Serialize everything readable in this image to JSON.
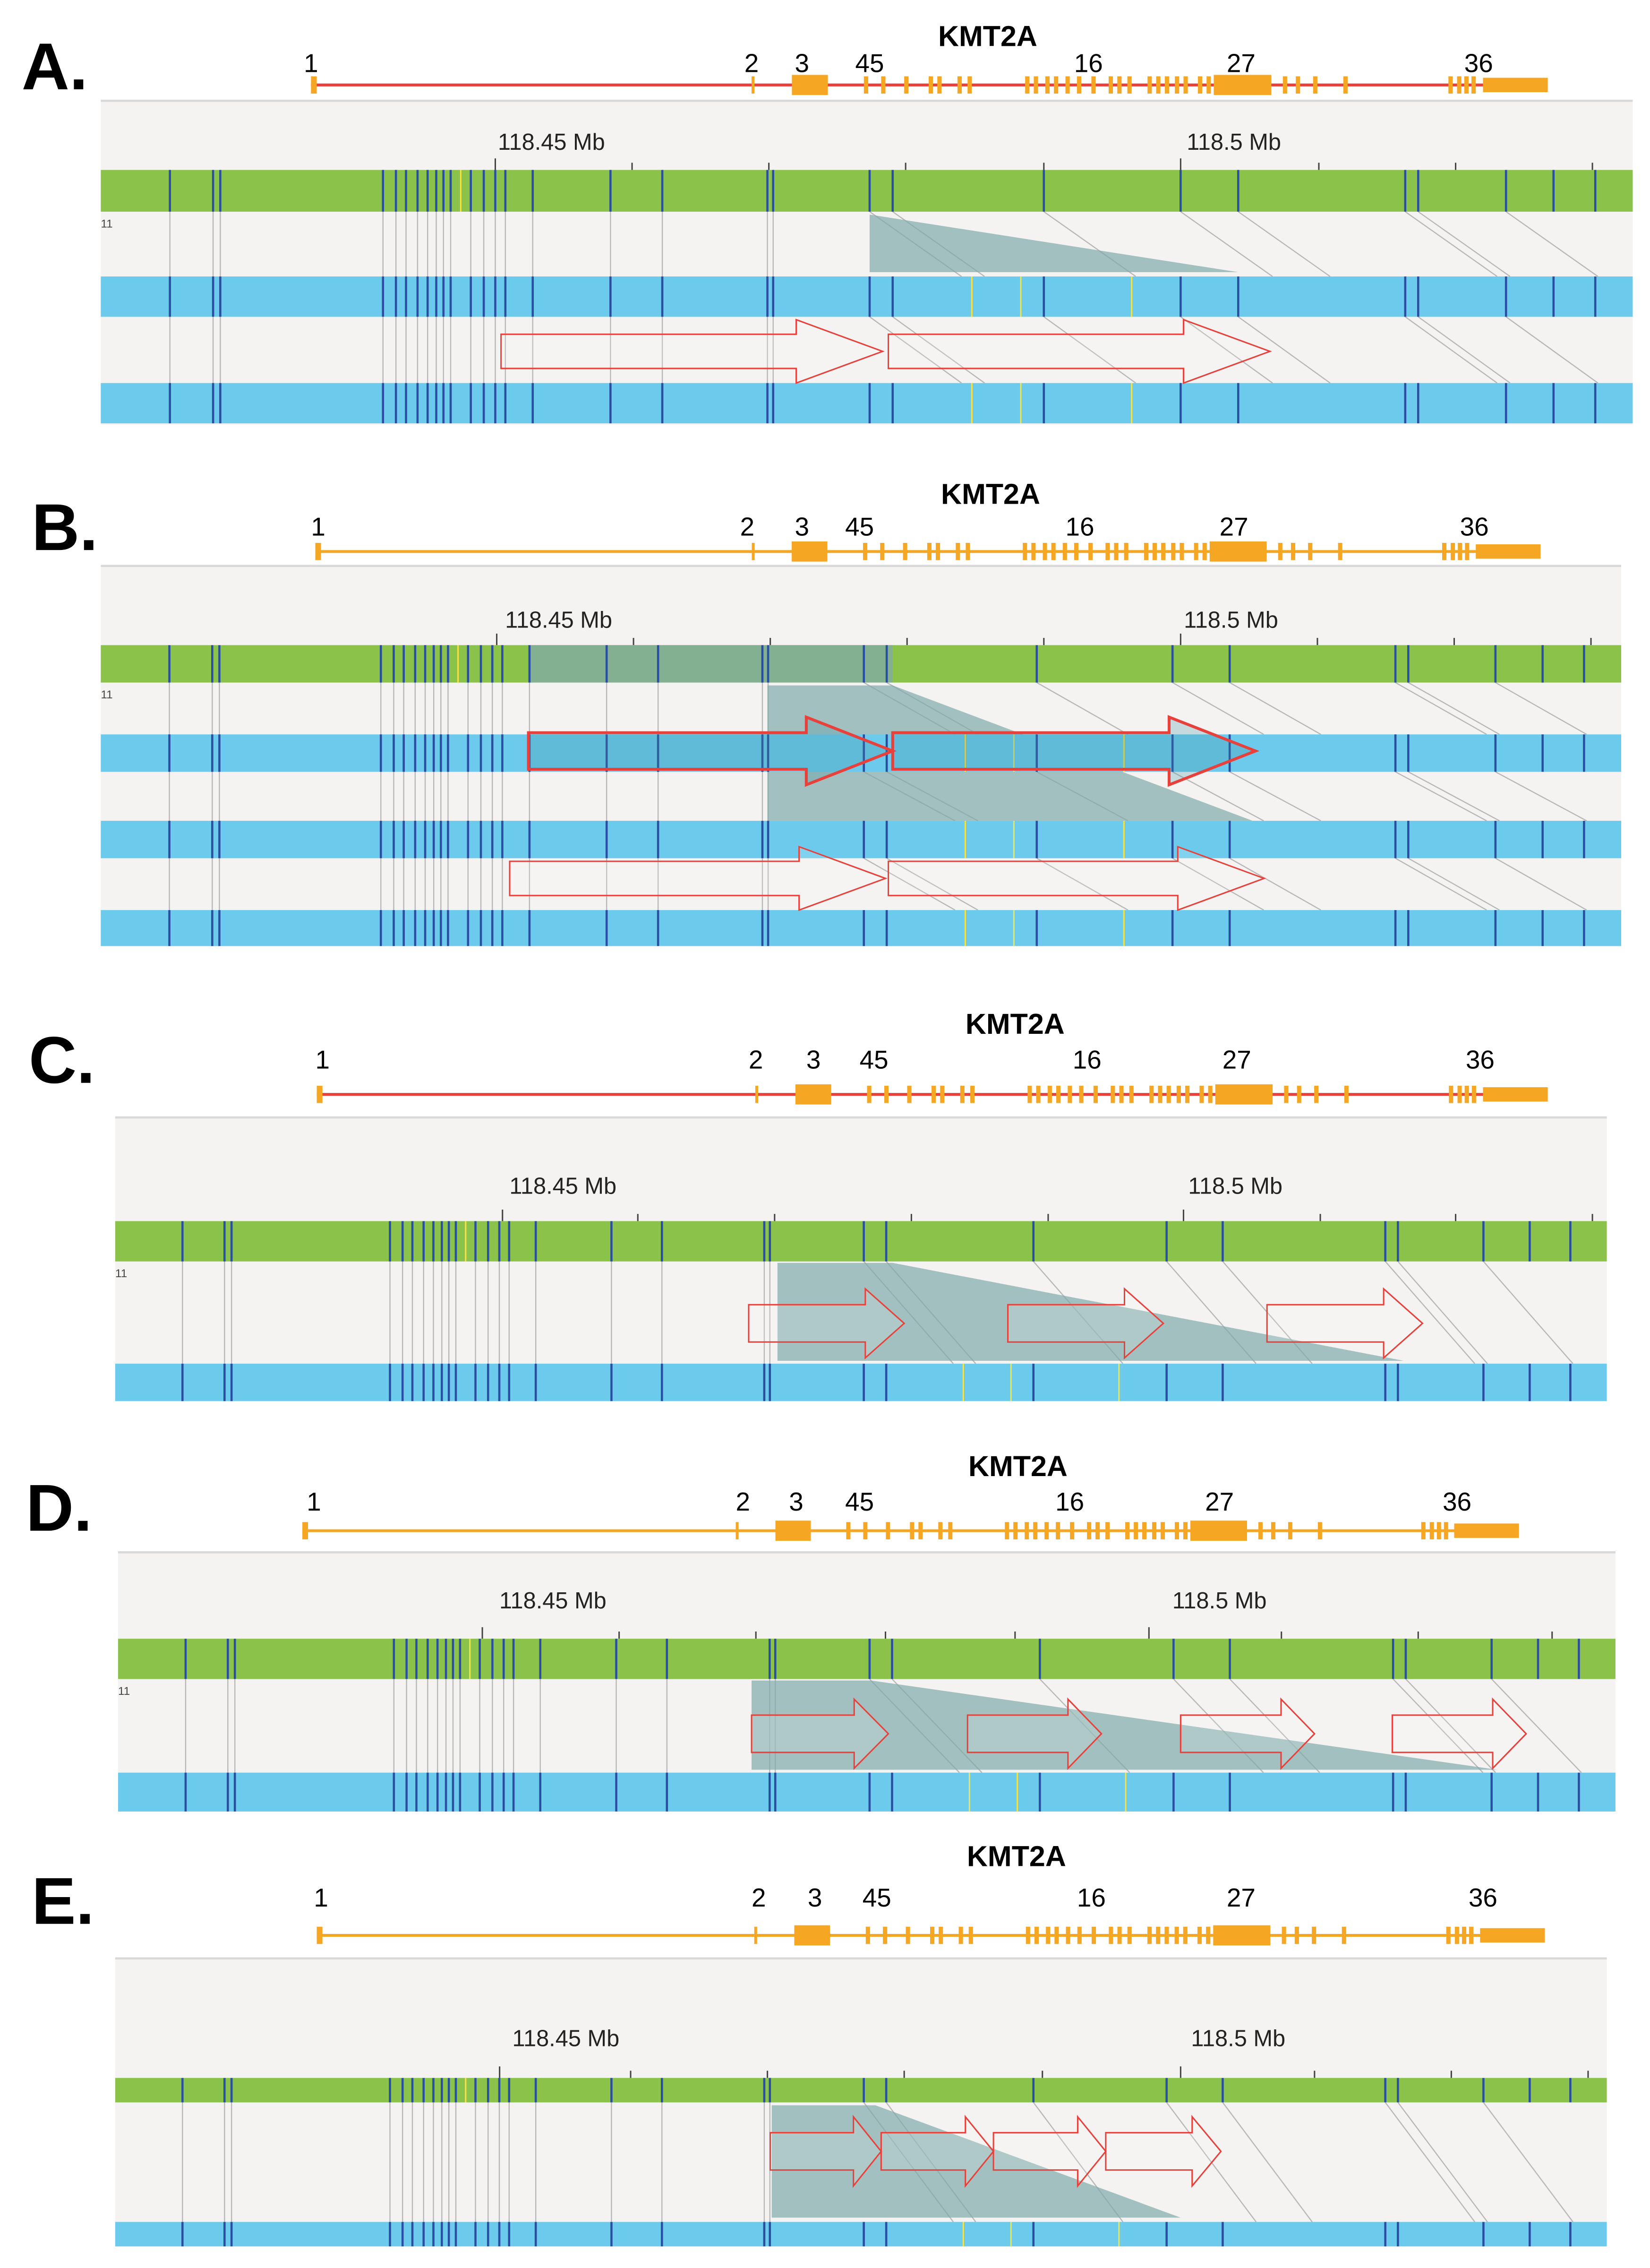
{
  "figure": {
    "panels": [
      {
        "label": "A.",
        "gene": "KMT2A",
        "exon_labels": [
          "1",
          "2",
          "3",
          "45",
          "16",
          "27",
          "36"
        ],
        "axis_labels": [
          "118.45 Mb",
          "118.5 Mb"
        ],
        "track_label": "11",
        "gene_line_color": "#e8403a",
        "arrow_style": "outline",
        "arrow_count": 2
      },
      {
        "label": "B.",
        "gene": "KMT2A",
        "exon_labels": [
          "1",
          "2",
          "3",
          "45",
          "16",
          "27",
          "36"
        ],
        "axis_labels": [
          "118.45 Mb",
          "118.5 Mb"
        ],
        "track_label": "11",
        "gene_line_color": "#f5a623",
        "arrow_style": "bold+outline",
        "arrow_count": 2
      },
      {
        "label": "C.",
        "gene": "KMT2A",
        "exon_labels": [
          "1",
          "2",
          "3",
          "45",
          "16",
          "27",
          "36"
        ],
        "axis_labels": [
          "118.45 Mb",
          "118.5 Mb"
        ],
        "track_label": "11",
        "gene_line_color": "#e8403a",
        "arrow_style": "outline",
        "arrow_count": 3
      },
      {
        "label": "D.",
        "gene": "KMT2A",
        "exon_labels": [
          "1",
          "2",
          "3",
          "45",
          "16",
          "27",
          "36"
        ],
        "axis_labels": [
          "118.45 Mb",
          "118.5 Mb"
        ],
        "track_label": "11",
        "gene_line_color": "#f5a623",
        "arrow_style": "outline",
        "arrow_count": 4
      },
      {
        "label": "E.",
        "gene": "KMT2A",
        "exon_labels": [
          "1",
          "2",
          "3",
          "45",
          "16",
          "27",
          "36"
        ],
        "axis_labels": [
          "118.45 Mb",
          "118.5 Mb"
        ],
        "track_label": "",
        "gene_line_color": "#f5a623",
        "arrow_style": "outline",
        "arrow_count": 4
      }
    ],
    "colors": {
      "exon": "#f5a623",
      "reference_track": "#8bc34a",
      "read_track": "#6ccbec",
      "mark": "#2a4fa0",
      "snp": "#f2e34a",
      "duplication_shade": "#7fa9aa",
      "arrow": "#e8403a",
      "track_bg": "#f4f3f1"
    }
  }
}
